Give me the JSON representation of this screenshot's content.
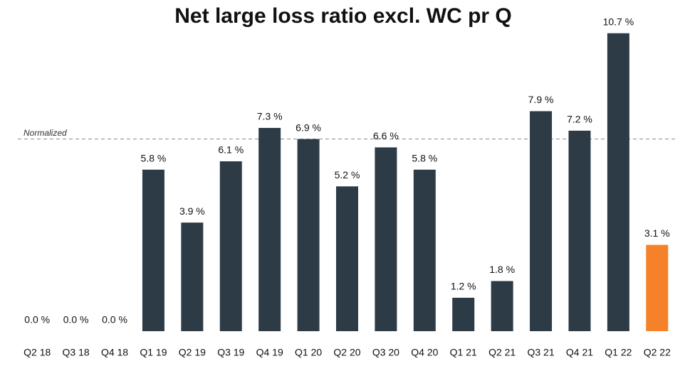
{
  "chart_data": {
    "type": "bar",
    "title": "Net large loss ratio excl. WC pr Q",
    "categories": [
      "Q2 18",
      "Q3 18",
      "Q4 18",
      "Q1 19",
      "Q2 19",
      "Q3 19",
      "Q4 19",
      "Q1 20",
      "Q2 20",
      "Q3 20",
      "Q4 20",
      "Q1 21",
      "Q2 21",
      "Q3 21",
      "Q4 21",
      "Q1 22",
      "Q2 22"
    ],
    "values": [
      0.0,
      0.0,
      0.0,
      5.8,
      3.9,
      6.1,
      7.3,
      6.9,
      5.2,
      6.6,
      5.8,
      1.2,
      1.8,
      7.9,
      7.2,
      10.7,
      3.1
    ],
    "value_labels": [
      "0.0 %",
      "0.0 %",
      "0.0 %",
      "5.8 %",
      "3.9 %",
      "6.1 %",
      "7.3 %",
      "6.9 %",
      "5.2 %",
      "6.6 %",
      "5.8 %",
      "1.2 %",
      "1.8 %",
      "7.9 %",
      "7.2 %",
      "10.7 %",
      "3.1 %"
    ],
    "colors": [
      "#2d3b47",
      "#2d3b47",
      "#2d3b47",
      "#2d3b47",
      "#2d3b47",
      "#2d3b47",
      "#2d3b47",
      "#2d3b47",
      "#2d3b47",
      "#2d3b47",
      "#2d3b47",
      "#2d3b47",
      "#2d3b47",
      "#2d3b47",
      "#2d3b47",
      "#2d3b47",
      "#f5822a"
    ],
    "normalized": {
      "label": "Normalized",
      "value": 6.9
    },
    "ylim": [
      0,
      11
    ],
    "grid": false
  }
}
